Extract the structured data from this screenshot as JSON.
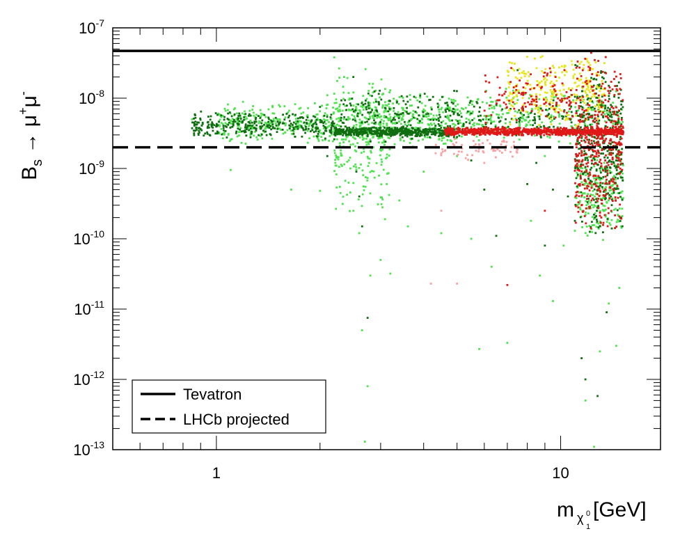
{
  "chart_data": {
    "type": "scatter",
    "xlabel": {
      "main": "m",
      "sub": "χ",
      "subsup": "0",
      "subsub": "1",
      "unit": " [GeV]"
    },
    "ylabel": {
      "main": "B",
      "sub": "s",
      "arrow": " → ",
      "mu1": "μ",
      "sup1": "+",
      "mu2": "μ",
      "sup2": "-"
    },
    "x_scale": "log",
    "y_scale": "log",
    "xlim": [
      0.5,
      19.5
    ],
    "ylim": [
      1e-13,
      1e-07
    ],
    "x_tick_labels": [
      {
        "value": 1,
        "text": "1"
      },
      {
        "value": 10,
        "text": "10"
      }
    ],
    "y_tick_labels": [
      {
        "value": 1e-07,
        "base": "10",
        "exp": "-7"
      },
      {
        "value": 1e-08,
        "base": "10",
        "exp": "-8"
      },
      {
        "value": 1e-09,
        "base": "10",
        "exp": "-9"
      },
      {
        "value": 1e-10,
        "base": "10",
        "exp": "-10"
      },
      {
        "value": 1e-11,
        "base": "10",
        "exp": "-11"
      },
      {
        "value": 1e-12,
        "base": "10",
        "exp": "-12"
      },
      {
        "value": 1e-13,
        "base": "10",
        "exp": "-13"
      }
    ],
    "reference_lines": [
      {
        "name": "Tevatron",
        "value": 4.7e-08,
        "style": "solid",
        "color": "#000000"
      },
      {
        "name": "LHCb projected",
        "value": 2e-09,
        "style": "dashed",
        "color": "#000000"
      }
    ],
    "legend": {
      "position": "bottom-left",
      "entries": [
        {
          "label": "Tevatron",
          "style": "solid"
        },
        {
          "label": "LHCb projected",
          "style": "dashed"
        }
      ]
    },
    "series_colors": {
      "dark_green": "#0f6e0f",
      "light_green": "#4fe34f",
      "red": "#e01818",
      "pink": "#f7a1a1",
      "yellow": "#e6e61a"
    },
    "series": [
      {
        "name": "dark_green",
        "points": [
          [
            0.9,
            3.6e-09
          ],
          [
            0.95,
            4.2e-09
          ],
          [
            1.05,
            3.5e-09
          ],
          [
            1.12,
            4.1e-09
          ],
          [
            1.2,
            3.4e-09
          ],
          [
            1.3,
            5e-09
          ],
          [
            1.35,
            3.8e-09
          ],
          [
            1.45,
            4.6e-09
          ],
          [
            1.5,
            3.3e-09
          ],
          [
            1.6,
            6e-09
          ],
          [
            1.7,
            3.9e-09
          ],
          [
            1.8,
            4.5e-09
          ],
          [
            1.9,
            3.5e-09
          ],
          [
            2.0,
            7.5e-09
          ],
          [
            2.05,
            3.2e-09
          ],
          [
            2.1,
            1.5e-09
          ],
          [
            2.2,
            2.6e-09
          ],
          [
            2.3,
            4.8e-09
          ],
          [
            2.35,
            3.3e-09
          ],
          [
            2.45,
            3.6e-09
          ],
          [
            2.5,
            2e-08
          ],
          [
            2.55,
            9e-10
          ],
          [
            2.6,
            4e-10
          ],
          [
            2.65,
            1.5e-10
          ],
          [
            2.7,
            3.2e-09
          ],
          [
            2.75,
            7.5e-12
          ],
          [
            2.8,
            3.7e-09
          ],
          [
            2.9,
            4.5e-09
          ],
          [
            3.0,
            3e-09
          ],
          [
            3.1,
            2.4e-09
          ],
          [
            3.2,
            3.6e-09
          ],
          [
            3.3,
            3.2e-09
          ],
          [
            3.5,
            3.4e-09
          ],
          [
            3.7,
            3e-09
          ],
          [
            3.9,
            3.5e-09
          ],
          [
            4.1,
            3.1e-09
          ],
          [
            4.3,
            3.3e-09
          ],
          [
            4.5,
            2.9e-09
          ],
          [
            4.7,
            4e-09
          ],
          [
            4.8,
            3.2e-09
          ],
          [
            5.0,
            2.8e-09
          ],
          [
            5.2,
            3.5e-09
          ],
          [
            5.5,
            1.3e-09
          ],
          [
            6.0,
            5e-10
          ],
          [
            6.5,
            1.1e-10
          ],
          [
            7.0,
            3e-09
          ],
          [
            7.5,
            2.5e-08
          ],
          [
            8.0,
            6e-10
          ],
          [
            8.5,
            1.2e-09
          ],
          [
            9.0,
            8e-11
          ],
          [
            9.5,
            5e-10
          ],
          [
            10.0,
            3.1e-09
          ],
          [
            10.5,
            4e-10
          ],
          [
            11.0,
            1.8e-10
          ],
          [
            11.5,
            2e-12
          ],
          [
            12.0,
            6e-09
          ],
          [
            12.5,
            2.2e-10
          ],
          [
            13.0,
            1e-09
          ],
          [
            13.5,
            9e-10
          ],
          [
            14.0,
            4e-10
          ],
          [
            14.5,
            1.3e-09
          ],
          [
            15.0,
            2e-10
          ],
          [
            12.8,
            5.8e-13
          ],
          [
            13.6,
            9e-12
          ],
          [
            11.8,
            1e-12
          ],
          [
            13.8,
            1.5e-08
          ]
        ],
        "generate": [
          {
            "count": 300,
            "x": [
              0.85,
              2.2
            ],
            "y": [
              2.6e-09,
              6.5e-09
            ]
          },
          {
            "count": 520,
            "x": [
              2.2,
              5.0
            ],
            "y": [
              2.8e-09,
              3.9e-09
            ]
          },
          {
            "count": 180,
            "x": [
              2.3,
              5.0
            ],
            "y": [
              2.2e-09,
              1.5e-08
            ]
          },
          {
            "count": 350,
            "x": [
              11.0,
              15.2
            ],
            "y": [
              1e-10,
              4.5e-08
            ]
          },
          {
            "count": 160,
            "x": [
              5.0,
              15.2
            ],
            "y": [
              2.6e-09,
              1e-08
            ]
          }
        ]
      },
      {
        "name": "light_green",
        "points": [
          [
            0.85,
            5e-09
          ],
          [
            1.1,
            9.5e-10
          ],
          [
            1.65,
            5e-10
          ],
          [
            2.0,
            4.8e-10
          ],
          [
            2.1,
            1.1e-08
          ],
          [
            2.2,
            3.8e-08
          ],
          [
            2.35,
            2e-08
          ],
          [
            2.45,
            1e-09
          ],
          [
            2.5,
            2.5e-10
          ],
          [
            2.6,
            1.2e-10
          ],
          [
            2.65,
            5e-12
          ],
          [
            2.7,
            1.3e-13
          ],
          [
            2.75,
            8e-13
          ],
          [
            2.8,
            3e-11
          ],
          [
            3.0,
            5e-11
          ],
          [
            3.2,
            3.2e-11
          ],
          [
            3.4,
            3.5e-10
          ],
          [
            3.6,
            1.5e-10
          ],
          [
            4.0,
            9e-10
          ],
          [
            4.5,
            1.2e-10
          ],
          [
            5.0,
            1.5e-09
          ],
          [
            5.5,
            1e-10
          ],
          [
            5.8,
            2.7e-12
          ],
          [
            6.3,
            4e-11
          ],
          [
            7.0,
            3.3e-12
          ],
          [
            8.2,
            1.8e-10
          ],
          [
            8.7,
            3e-11
          ],
          [
            9.5,
            1.3e-11
          ],
          [
            10.2,
            8e-11
          ],
          [
            11.0,
            1.3e-10
          ],
          [
            11.8,
            5e-13
          ],
          [
            12.5,
            1.1e-13
          ],
          [
            13.0,
            2.5e-12
          ],
          [
            13.8,
            1.2e-11
          ],
          [
            14.5,
            3e-12
          ],
          [
            14.8,
            2e-11
          ],
          [
            6.8,
            3.5e-09
          ],
          [
            9.0,
            1.5e-09
          ]
        ],
        "generate": [
          {
            "count": 280,
            "x": [
              1.0,
              2.3
            ],
            "y": [
              2.2e-09,
              9e-09
            ]
          },
          {
            "count": 230,
            "x": [
              2.2,
              3.2
            ],
            "y": [
              1.5e-10,
              3.5e-08
            ]
          },
          {
            "count": 340,
            "x": [
              2.5,
              5.0
            ],
            "y": [
              2e-09,
              1.2e-08
            ]
          },
          {
            "count": 260,
            "x": [
              5.0,
              15.2
            ],
            "y": [
              2.2e-09,
              1.5e-08
            ]
          },
          {
            "count": 240,
            "x": [
              11.0,
              15.2
            ],
            "y": [
              9e-11,
              2e-09
            ]
          }
        ]
      },
      {
        "name": "red",
        "points": [
          [
            7.0,
            2.2e-11
          ],
          [
            9.0,
            2.5e-10
          ],
          [
            11.5,
            3e-10
          ],
          [
            12.5,
            6e-10
          ]
        ],
        "generate": [
          {
            "count": 900,
            "x": [
              4.6,
              15.2
            ],
            "y": [
              2.9e-09,
              3.9e-09
            ]
          },
          {
            "count": 420,
            "x": [
              11.0,
              15.2
            ],
            "y": [
              1e-10,
              4.8e-08
            ]
          },
          {
            "count": 120,
            "x": [
              6.0,
              11.0
            ],
            "y": [
              4e-09,
              3e-08
            ]
          }
        ]
      },
      {
        "name": "pink",
        "points": [
          [
            4.2,
            2.3e-11
          ],
          [
            5.0,
            2.3e-11
          ],
          [
            4.5,
            2.5e-10
          ],
          [
            5.3,
            1.4e-09
          ],
          [
            6.0,
            1.2e-09
          ],
          [
            7.2,
            2e-09
          ]
        ],
        "generate": [
          {
            "count": 60,
            "x": [
              4.3,
              7.5
            ],
            "y": [
              1.3e-09,
              2.8e-09
            ]
          }
        ]
      },
      {
        "name": "yellow",
        "points": [],
        "generate": [
          {
            "count": 280,
            "x": [
              7.0,
              13.5
            ],
            "y": [
              3.8e-09,
              4.5e-08
            ]
          }
        ]
      }
    ]
  }
}
